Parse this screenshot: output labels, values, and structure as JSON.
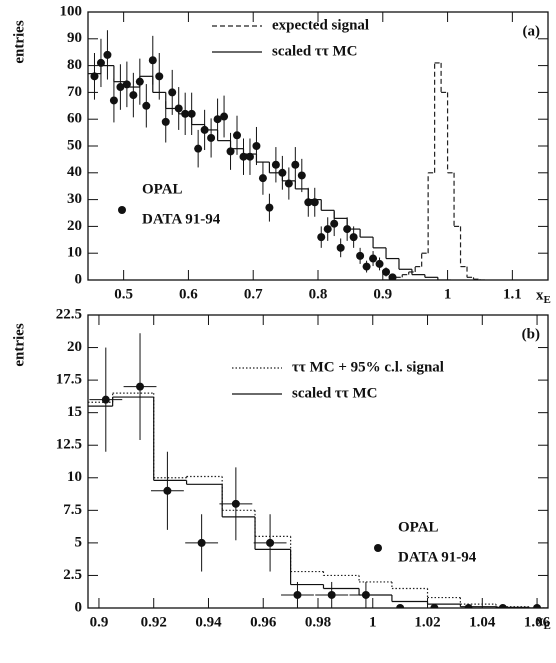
{
  "chart_data": [
    {
      "type": "step",
      "panel_label": "(a)",
      "ylabel": "entries",
      "xlabel": "x",
      "xlabel_sub": "E",
      "xlim": [
        0.445,
        1.155
      ],
      "xticks": [
        0.5,
        0.6,
        0.7,
        0.8,
        0.9,
        1,
        1.1
      ],
      "ylim": [
        0,
        100
      ],
      "yticks": [
        0,
        10,
        20,
        30,
        40,
        50,
        60,
        70,
        80,
        90,
        100
      ],
      "series": [
        {
          "name": "expected signal",
          "kind": "step",
          "dash": "dashed",
          "color": "#222",
          "bins": [
            0.9,
            0.91,
            0.92,
            0.93,
            0.94,
            0.95,
            0.96,
            0.97,
            0.98,
            0.99,
            1.0,
            1.01,
            1.02,
            1.03,
            1.04,
            1.05,
            1.06
          ],
          "values": [
            0,
            0.5,
            1,
            2,
            3,
            5,
            10,
            40,
            81,
            70,
            40,
            20,
            5,
            1,
            0.3,
            0
          ]
        },
        {
          "name": "scaled ττ MC",
          "kind": "step",
          "dash": "solid",
          "color": "#111",
          "bins": [
            0.445,
            0.465,
            0.485,
            0.505,
            0.525,
            0.545,
            0.565,
            0.585,
            0.605,
            0.625,
            0.645,
            0.665,
            0.685,
            0.705,
            0.725,
            0.745,
            0.765,
            0.785,
            0.805,
            0.825,
            0.845,
            0.865,
            0.885,
            0.905,
            0.925,
            0.945,
            0.965,
            0.985,
            1.005
          ],
          "values": [
            77,
            80,
            74,
            72,
            76,
            70,
            64,
            62,
            58,
            56,
            52,
            49,
            47,
            44,
            40,
            37,
            34,
            30,
            26,
            23,
            19,
            16,
            12,
            8,
            4,
            2,
            1,
            0
          ]
        },
        {
          "name": "OPAL",
          "subname": "DATA 91-94",
          "kind": "points",
          "color": "#111",
          "x": [
            0.455,
            0.465,
            0.475,
            0.485,
            0.495,
            0.505,
            0.515,
            0.525,
            0.535,
            0.545,
            0.555,
            0.565,
            0.575,
            0.585,
            0.595,
            0.605,
            0.615,
            0.625,
            0.635,
            0.645,
            0.655,
            0.665,
            0.675,
            0.685,
            0.695,
            0.705,
            0.715,
            0.725,
            0.735,
            0.745,
            0.755,
            0.765,
            0.775,
            0.785,
            0.795,
            0.805,
            0.815,
            0.825,
            0.835,
            0.845,
            0.855,
            0.865,
            0.875,
            0.885,
            0.895,
            0.905,
            0.915
          ],
          "values": [
            76,
            81,
            84,
            67,
            72,
            73,
            69,
            74,
            65,
            82,
            76,
            59,
            70,
            64,
            62,
            62,
            49,
            56,
            53,
            60,
            61,
            48,
            54,
            46,
            46,
            50,
            38,
            27,
            43,
            40,
            36,
            43,
            39,
            29,
            29,
            16,
            19,
            21,
            12,
            19,
            16,
            9,
            5,
            8,
            6,
            3,
            1
          ],
          "errors": [
            8.7,
            9,
            9.2,
            8.2,
            8.5,
            8.5,
            8.3,
            8.6,
            8.1,
            9.1,
            8.7,
            7.7,
            8.4,
            8,
            7.9,
            7.9,
            7,
            7.5,
            7.3,
            7.7,
            7.8,
            6.9,
            7.3,
            6.8,
            6.8,
            7.1,
            6.2,
            5.2,
            6.6,
            6.3,
            6,
            6.6,
            6.2,
            5.4,
            5.4,
            4,
            4.4,
            4.6,
            3.5,
            4.4,
            4,
            3,
            2.2,
            2.8,
            2.4,
            1.7,
            1
          ]
        }
      ]
    },
    {
      "type": "step",
      "panel_label": "(b)",
      "ylabel": "entries",
      "xlabel": "x",
      "xlabel_sub": "E",
      "xlim": [
        0.896,
        1.064
      ],
      "xticks": [
        0.9,
        0.92,
        0.94,
        0.96,
        0.98,
        1,
        1.02,
        1.04,
        1.06
      ],
      "ylim": [
        0,
        22.5
      ],
      "yticks": [
        0,
        2.5,
        5,
        7.5,
        10,
        12.5,
        15,
        17.5,
        20,
        22.5
      ],
      "series": [
        {
          "name": "ττ MC + 95% c.l. signal",
          "kind": "step",
          "dash": "dotted",
          "color": "#222",
          "bins": [
            0.896,
            0.905,
            0.92,
            0.932,
            0.945,
            0.957,
            0.97,
            0.982,
            0.995,
            1.007,
            1.02,
            1.032,
            1.045,
            1.057,
            1.064
          ],
          "values": [
            15.8,
            16.5,
            10,
            10.1,
            7.5,
            5.5,
            2.8,
            2.5,
            2,
            1.5,
            0.8,
            0.3,
            0.1,
            0
          ]
        },
        {
          "name": "scaled ττ MC",
          "kind": "step",
          "dash": "solid",
          "color": "#111",
          "bins": [
            0.896,
            0.905,
            0.92,
            0.932,
            0.945,
            0.957,
            0.97,
            0.982,
            0.995,
            1.007,
            1.02,
            1.032,
            1.045,
            1.057,
            1.064
          ],
          "values": [
            15.5,
            16.2,
            9.8,
            9.5,
            7,
            4.5,
            1.8,
            1.5,
            1,
            0.5,
            0.3,
            0.1,
            0.05,
            0
          ]
        },
        {
          "name": "OPAL",
          "subname": "DATA 91-94",
          "kind": "points",
          "color": "#111",
          "xerr": 0.006,
          "x": [
            0.9025,
            0.915,
            0.925,
            0.9375,
            0.95,
            0.9625,
            0.9725,
            0.985,
            0.9975,
            1.01,
            1.0225,
            1.035,
            1.0475,
            1.06
          ],
          "values": [
            16,
            17,
            9,
            5,
            8,
            5,
            1,
            1,
            1,
            0,
            0,
            0,
            0,
            0
          ],
          "errors": [
            4,
            4.1,
            3,
            2.2,
            2.8,
            2.2,
            1,
            1,
            1,
            0,
            0,
            0,
            0,
            0
          ]
        }
      ]
    }
  ]
}
